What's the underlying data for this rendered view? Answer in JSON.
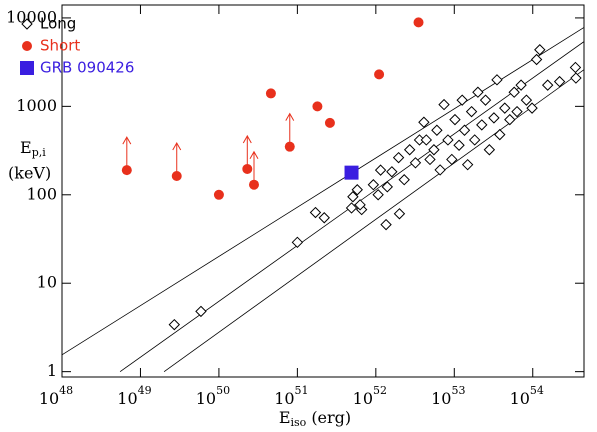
{
  "chart_data": {
    "type": "scatter",
    "xlabel": {
      "main": "E",
      "sub": "iso",
      "unit": "(erg)"
    },
    "ylabel": {
      "main": "E",
      "sub": "p,i",
      "unit": "(keV)"
    },
    "log_x": true,
    "log_y": true,
    "xlim": [
      1e+48,
      4.5e+54
    ],
    "ylim": [
      0.87,
      14000
    ],
    "xticks": [
      {
        "value": 1e+48,
        "label": "10",
        "exponent": "48"
      },
      {
        "value": 1e+49,
        "label": "10",
        "exponent": "49"
      },
      {
        "value": 1e+50,
        "label": "10",
        "exponent": "50"
      },
      {
        "value": 1e+51,
        "label": "10",
        "exponent": "51"
      },
      {
        "value": 1e+52,
        "label": "10",
        "exponent": "52"
      },
      {
        "value": 1e+53,
        "label": "10",
        "exponent": "53"
      },
      {
        "value": 1e+54,
        "label": "10",
        "exponent": "54"
      }
    ],
    "yticks": [
      1,
      10,
      100,
      1000,
      10000
    ],
    "legend": "upper left",
    "lines": [
      {
        "x": [
          1e+48,
          4.5e+54
        ],
        "y": [
          1.55,
          7800
        ]
      },
      {
        "x": [
          5.5e+48,
          4.5e+54
        ],
        "y": [
          1,
          5400
        ]
      },
      {
        "x": [
          2e+49,
          4.5e+54
        ],
        "y": [
          1,
          2600
        ]
      }
    ],
    "series": [
      {
        "name": "Long",
        "color": "#000000",
        "marker": "diamond",
        "x": [
          2.7e+49,
          5.9e+49,
          1e+51,
          1.7e+51,
          2.2e+51,
          4.9e+51,
          6.6e+51,
          1.35e+52,
          2e+52,
          5.1e+51,
          5.8e+51,
          6.3e+51,
          9.3e+51,
          1.07e+52,
          1.15e+52,
          1.4e+52,
          1.6e+52,
          1.95e+52,
          2.3e+52,
          2.7e+52,
          3.2e+52,
          3.6e+52,
          4.1e+52,
          4.9e+52,
          5.5e+52,
          6e+52,
          6.6e+52,
          7.4e+52,
          8.3e+52,
          9.3e+52,
          1.02e+53,
          1.15e+53,
          1.26e+53,
          1.35e+53,
          1.48e+53,
          1.66e+53,
          1.82e+53,
          2e+53,
          2.24e+53,
          2.5e+53,
          2.8e+53,
          3.2e+53,
          3.5e+53,
          3.8e+53,
          4.4e+53,
          5.1e+53,
          5.8e+53,
          6.3e+53,
          7.1e+53,
          8.3e+53,
          9.8e+53,
          1.12e+54,
          1.23e+54,
          1.55e+54,
          2.2e+54,
          3.5e+54,
          3.55e+54,
          4.4e+52
        ],
        "values": [
          3.4,
          4.8,
          29,
          63,
          55,
          71,
          68,
          46,
          61,
          95,
          114,
          77,
          130,
          100,
          190,
          123,
          182,
          263,
          148,
          323,
          230,
          417,
          661,
          251,
          323,
          537,
          191,
          1047,
          417,
          251,
          708,
          363,
          1175,
          537,
          219,
          871,
          417,
          1445,
          617,
          1175,
          323,
          741,
          1995,
          479,
          955,
          708,
          1445,
          871,
          1738,
          1175,
          955,
          3388,
          4365,
          1738,
          1905,
          2754,
          2089,
          417
        ]
      },
      {
        "name": "Short",
        "color": "#e8301c",
        "marker": "circle",
        "x": [
          6.7e+48,
          2.9e+49,
          1e+50,
          2.3e+50,
          2.8e+50,
          4.6e+50,
          8e+50,
          1.8e+51,
          2.6e+51,
          1.1e+52,
          3.5e+52
        ],
        "values": [
          190,
          163,
          100,
          196,
          130,
          1400,
          350,
          1000,
          650,
          2300,
          8900
        ],
        "lower_limit": [
          true,
          true,
          false,
          true,
          true,
          false,
          true,
          false,
          false,
          false,
          false
        ]
      },
      {
        "name": "GRB 090426",
        "color": "#3a1ee0",
        "marker": "square",
        "x": [
          4.9e+51
        ],
        "values": [
          178
        ]
      }
    ]
  }
}
